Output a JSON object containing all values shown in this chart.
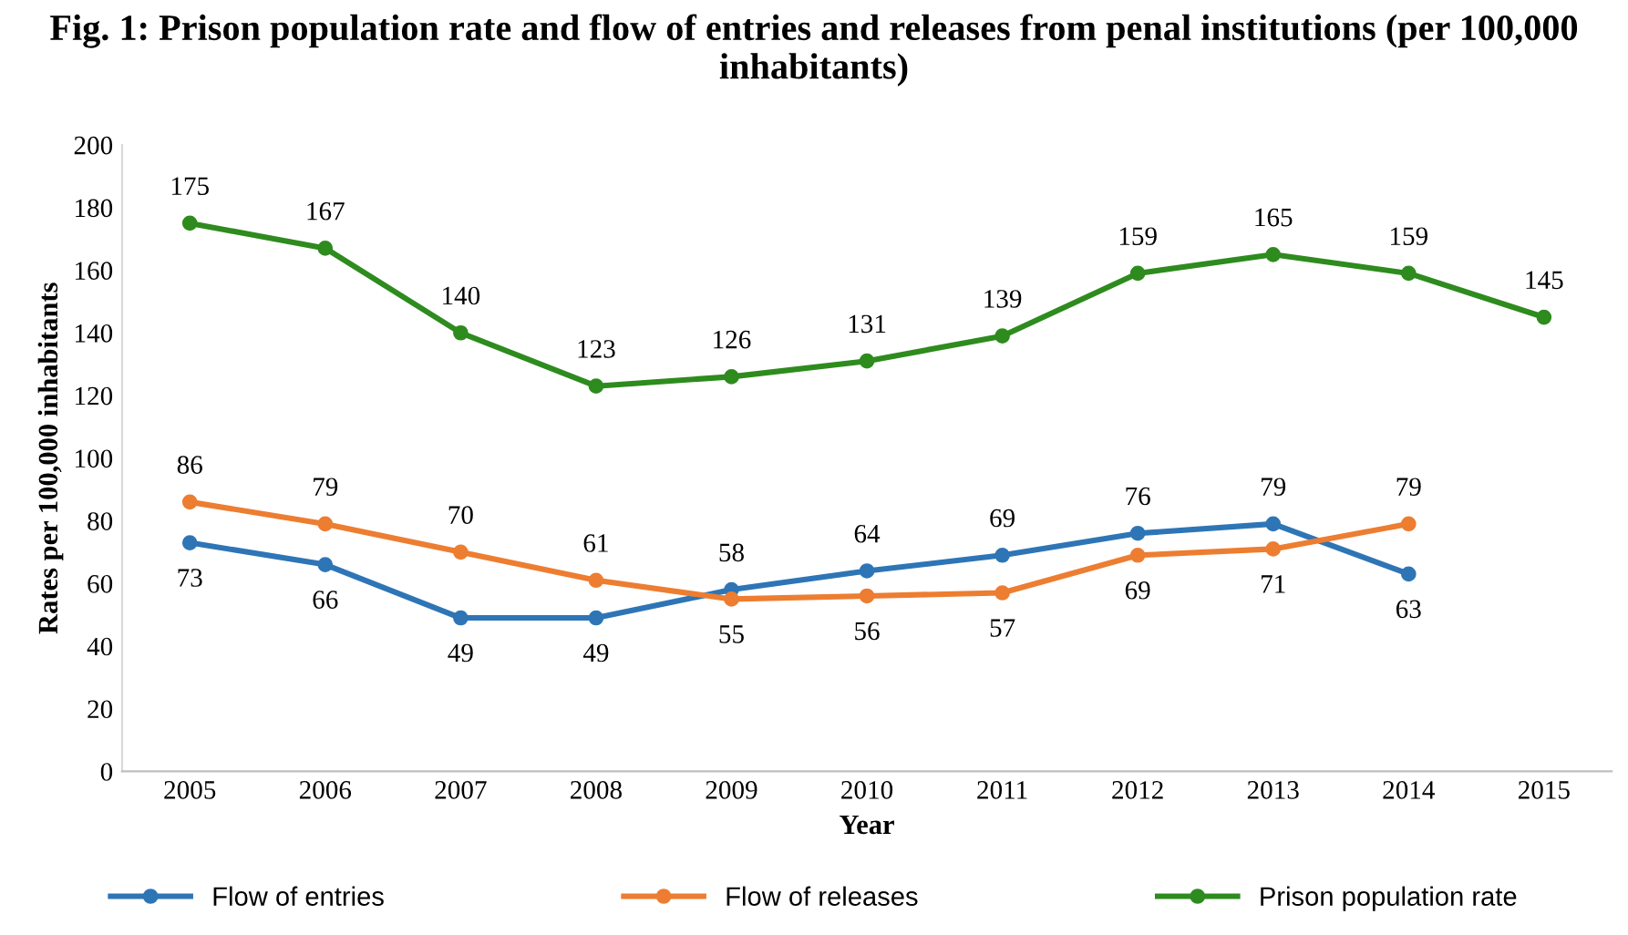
{
  "chart_data": {
    "type": "line",
    "title": "Fig. 1: Prison population rate and flow of entries and releases from penal institutions (per 100,000 inhabitants)",
    "xlabel": "Year",
    "ylabel": "Rates per 100,000 inhabitants",
    "categories": [
      "2005",
      "2006",
      "2007",
      "2008",
      "2009",
      "2010",
      "2011",
      "2012",
      "2013",
      "2014",
      "2015"
    ],
    "series": [
      {
        "name": "Flow of entries",
        "color": "#2e75b6",
        "values": [
          73,
          66,
          49,
          49,
          58,
          64,
          69,
          76,
          79,
          63,
          null
        ]
      },
      {
        "name": "Flow of releases",
        "color": "#ed7d31",
        "values": [
          86,
          79,
          70,
          61,
          55,
          56,
          57,
          69,
          71,
          79,
          null
        ]
      },
      {
        "name": "Prison population rate",
        "color": "#2e8b1e",
        "values": [
          175,
          167,
          140,
          123,
          126,
          131,
          139,
          159,
          165,
          159,
          145
        ]
      }
    ],
    "ylim": [
      0,
      200
    ],
    "yticks": [
      0,
      20,
      40,
      60,
      80,
      100,
      120,
      140,
      160,
      180,
      200
    ],
    "data_labels": true,
    "marker": "circle",
    "line_style": "solid",
    "legend": "bottom",
    "grid": false
  }
}
